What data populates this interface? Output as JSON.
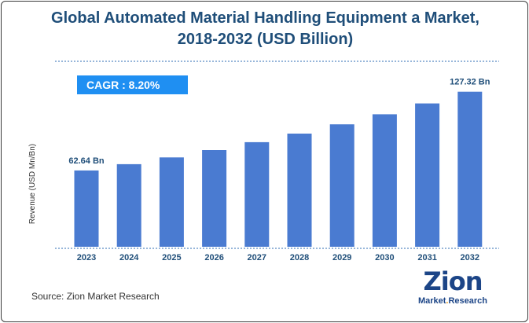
{
  "title_lines": [
    "Global Automated Material Handling Equipment a Market,",
    "2018-2032 (USD Billion)"
  ],
  "cagr_label": "CAGR :  8.20%",
  "source": "Source: Zion Market Research",
  "logo": {
    "main": "Zion",
    "sub_left": "Market",
    "sub_dot": ".",
    "sub_right": "Research"
  },
  "colors": {
    "bar": "#4a7bd1",
    "title": "#1f4e79",
    "label": "#1f4e79",
    "cagr_bg": "#1f8ff2",
    "axis_line": "#2f6db5"
  },
  "chart_data": {
    "type": "bar",
    "title": "Global Automated Material Handling Equipment a Market, 2018-2032 (USD Billion)",
    "xlabel": "",
    "ylabel": "Revenue (USD Mn/Bn)",
    "categories": [
      "2023",
      "2024",
      "2025",
      "2026",
      "2027",
      "2028",
      "2029",
      "2030",
      "2031",
      "2032"
    ],
    "values": [
      62.64,
      67.78,
      73.34,
      79.35,
      85.86,
      92.9,
      100.52,
      108.77,
      117.69,
      127.32
    ],
    "data_labels": [
      {
        "index": 0,
        "text": "62.64 Bn"
      },
      {
        "index": 9,
        "text": "127.32 Bn"
      }
    ],
    "ylim": [
      0,
      140
    ],
    "grid": false,
    "legend": "none"
  }
}
